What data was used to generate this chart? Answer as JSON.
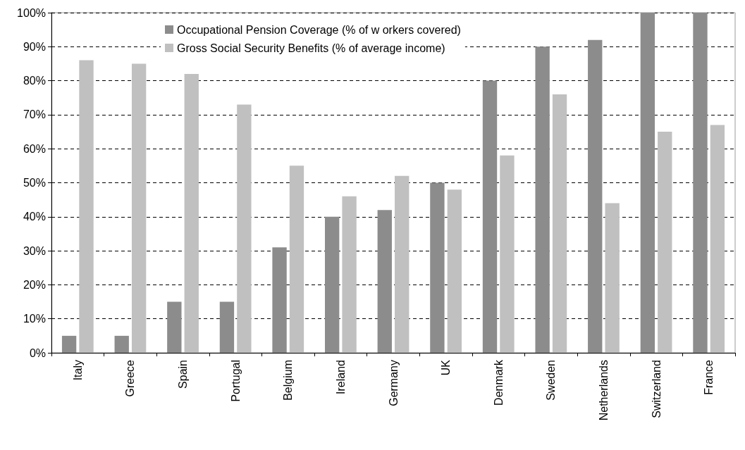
{
  "chart_data": {
    "type": "bar",
    "categories": [
      "Italy",
      "Greece",
      "Spain",
      "Portugal",
      "Belgium",
      "Ireland",
      "Germany",
      "UK",
      "Denmark",
      "Sweden",
      "Netherlands",
      "Switzerland",
      "France"
    ],
    "series": [
      {
        "name": "Occupational Pension Coverage (% of w orkers covered)",
        "color": "#8c8c8c",
        "values": [
          5,
          5,
          15,
          15,
          31,
          40,
          42,
          50,
          80,
          90,
          92,
          100,
          100
        ]
      },
      {
        "name": "Gross Social Security Benefits (% of average income)",
        "color": "#c0c0c0",
        "values": [
          86,
          85,
          82,
          73,
          55,
          46,
          52,
          48,
          58,
          76,
          44,
          65,
          67
        ]
      }
    ],
    "ylim": [
      0,
      100
    ],
    "yticks": [
      {
        "value": 0,
        "label": "0%"
      },
      {
        "value": 10,
        "label": "10%"
      },
      {
        "value": 20,
        "label": "20%"
      },
      {
        "value": 30,
        "label": "30%"
      },
      {
        "value": 40,
        "label": "40%"
      },
      {
        "value": 50,
        "label": "50%"
      },
      {
        "value": 60,
        "label": "60%"
      },
      {
        "value": 70,
        "label": "70%"
      },
      {
        "value": 80,
        "label": "80%"
      },
      {
        "value": 90,
        "label": "90%"
      },
      {
        "value": 100,
        "label": "100%"
      }
    ],
    "grid": "y",
    "legend": "top left"
  }
}
